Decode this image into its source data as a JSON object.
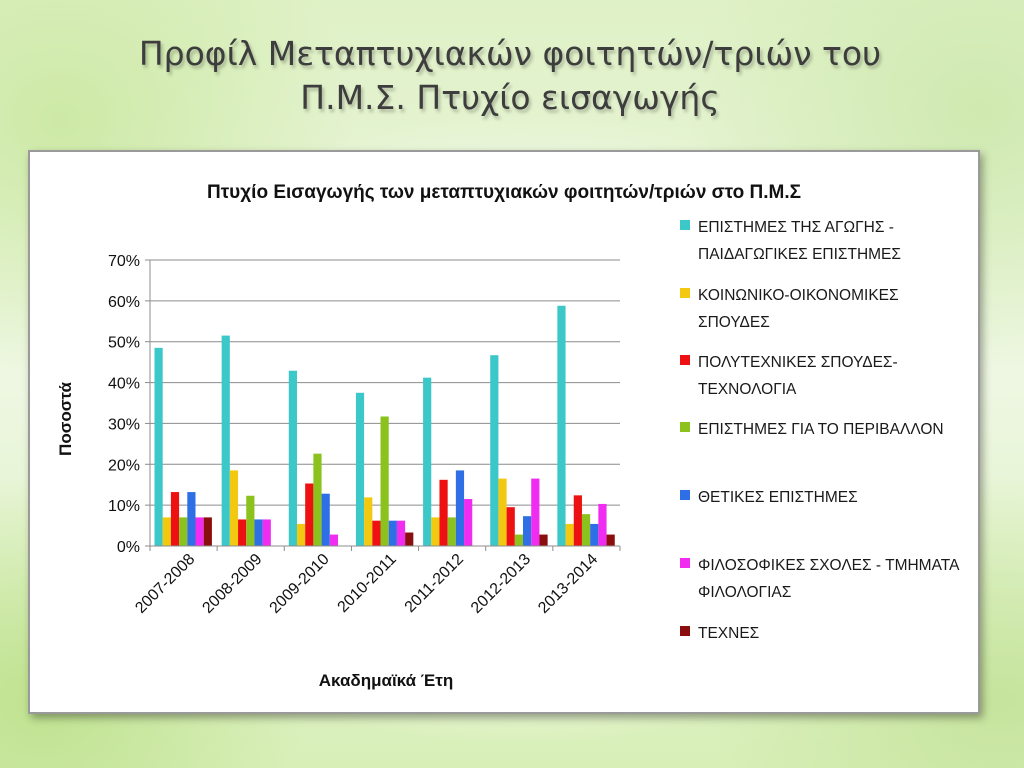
{
  "slide": {
    "title_line1": "Προφίλ Μεταπτυχιακών φοιτητών/τριών του",
    "title_line2": "Π.Μ.Σ. Πτυχίο εισαγωγής"
  },
  "chart_data": {
    "type": "bar",
    "title": "Πτυχίο Εισαγωγής των μεταπτυχιακών φοιτητών/τριών στο Π.Μ.Σ",
    "xlabel": "Ακαδημαϊκά Έτη",
    "ylabel": "Ποσοστά",
    "ylim": [
      0,
      70
    ],
    "yticks": [
      "0%",
      "10%",
      "20%",
      "30%",
      "40%",
      "50%",
      "60%",
      "70%"
    ],
    "grid": true,
    "legend_position": "right",
    "categories": [
      "2007-2008",
      "2008-2009",
      "2009-2010",
      "2010-2011",
      "2011-2012",
      "2012-2013",
      "2013-2014"
    ],
    "series": [
      {
        "name": "ΕΠΙΣΤΗΜΕΣ ΤΗΣ ΑΓΩΓΗΣ - ΠΑΙΔΑΓΩΓΙΚΕΣ ΕΠΙΣΤΗΜΕΣ",
        "color": "#3cc8c8",
        "values": [
          48.5,
          51.5,
          42.9,
          37.5,
          41.2,
          46.7,
          58.8
        ]
      },
      {
        "name": "ΚΟΙΝΩΝΙΚΟ-ΟΙΚΟΝΟΜΙΚΕΣ ΣΠΟΥΔΕΣ",
        "color": "#f2c811",
        "values": [
          7.0,
          18.5,
          5.4,
          11.9,
          7.0,
          16.5,
          5.4
        ]
      },
      {
        "name": "ΠΟΛΥΤΕΧΝΙΚΕΣ ΣΠΟΥΔΕΣ- ΤΕΧΝΟΛΟΓΙΑ",
        "color": "#ee1111",
        "values": [
          13.2,
          6.5,
          15.3,
          6.2,
          16.2,
          9.5,
          12.4
        ]
      },
      {
        "name": "ΕΠΙΣΤΗΜΕΣ ΓΙΑ ΤΟ ΠΕΡΙΒΑΛΛΟΝ",
        "color": "#8cc21e",
        "values": [
          7.0,
          12.3,
          22.6,
          31.7,
          7.0,
          2.8,
          7.8
        ]
      },
      {
        "name": "ΘΕΤΙΚΕΣ ΕΠΙΣΤΗΜΕΣ",
        "color": "#2e6fe6",
        "values": [
          13.2,
          6.5,
          12.8,
          6.2,
          18.5,
          7.3,
          5.4
        ]
      },
      {
        "name": "ΦΙΛΟΣΟΦΙΚΕΣ ΣΧΟΛΕΣ - ΤΜΗΜΑΤΑ ΦΙΛΟΛΟΓΙΑΣ",
        "color": "#f02cf0",
        "values": [
          7.0,
          6.5,
          2.8,
          6.2,
          11.5,
          16.5,
          10.3
        ]
      },
      {
        "name": "ΤΕΧΝΕΣ",
        "color": "#8b0e0e",
        "values": [
          7.0,
          0,
          0,
          3.3,
          0,
          2.8,
          2.8
        ]
      }
    ]
  }
}
